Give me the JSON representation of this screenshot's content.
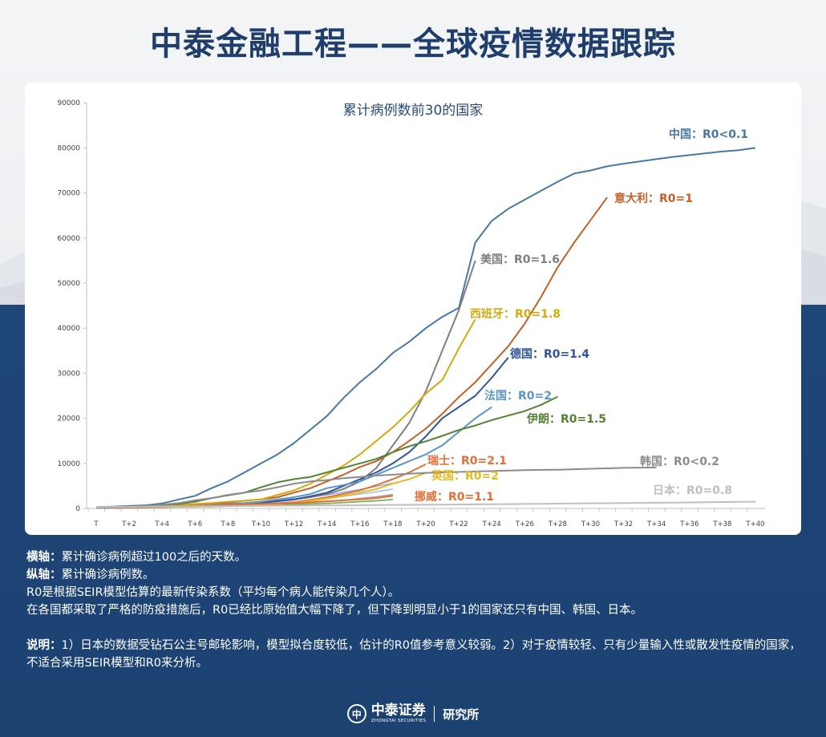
{
  "header": {
    "title": "中泰金融工程——全球疫情数据跟踪"
  },
  "colors": {
    "navy": "#1e4677",
    "title": "#1f3e6b"
  },
  "chart_data": {
    "type": "line",
    "title": "累计病例数前30的国家",
    "xlabel": "",
    "ylabel": "",
    "x_tick_labels": [
      "T",
      "T+2",
      "T+4",
      "T+6",
      "T+8",
      "T+10",
      "T+12",
      "T+14",
      "T+16",
      "T+18",
      "T+20",
      "T+22",
      "T+24",
      "T+26",
      "T+28",
      "T+30",
      "T+32",
      "T+34",
      "T+36",
      "T+38",
      "T+40"
    ],
    "x_range_days": [
      0,
      40
    ],
    "y_ticks": [
      0,
      10000,
      20000,
      30000,
      40000,
      50000,
      60000,
      70000,
      80000,
      90000
    ],
    "ylim": [
      0,
      90000
    ],
    "grid": false,
    "legend": "inline labels at line ends",
    "series": [
      {
        "name": "中国",
        "label": "中国：R0<0.1",
        "color": "#4a77a3",
        "values": [
          300,
          400,
          550,
          700,
          1100,
          2000,
          2800,
          4500,
          6000,
          8000,
          10000,
          12000,
          14500,
          17500,
          20500,
          24500,
          28000,
          31000,
          34500,
          37000,
          40000,
          42500,
          44500,
          59000,
          63800,
          66500,
          68500,
          70500,
          72500,
          74300,
          75000,
          75900,
          76500,
          77000,
          77500,
          78000,
          78400,
          78800,
          79200,
          79500,
          80000
        ]
      },
      {
        "name": "意大利",
        "label": "意大利：R0=1",
        "color": "#c0622a",
        "values": [
          150,
          200,
          300,
          400,
          500,
          700,
          900,
          1100,
          1300,
          1700,
          2000,
          2500,
          3500,
          4500,
          6000,
          7500,
          9200,
          10500,
          12500,
          15000,
          17700,
          21000,
          24700,
          28000,
          32000,
          36000,
          41000,
          47000,
          53500,
          59000,
          64000,
          69000
        ]
      },
      {
        "name": "美国",
        "label": "美国：R0=1.6",
        "color": "#7f7f7f",
        "values": [
          100,
          150,
          200,
          250,
          350,
          450,
          550,
          700,
          900,
          1100,
          1300,
          1600,
          2000,
          2500,
          3200,
          4300,
          6000,
          9000,
          14000,
          19000,
          26000,
          35000,
          44000,
          55000
        ]
      },
      {
        "name": "西班牙",
        "label": "西班牙：R0=1.8",
        "color": "#d4a90f",
        "values": [
          150,
          200,
          300,
          400,
          500,
          700,
          1000,
          1200,
          1500,
          1700,
          2000,
          3000,
          4000,
          5500,
          7500,
          9500,
          12000,
          15000,
          18000,
          21500,
          25500,
          28500,
          35500,
          42000
        ]
      },
      {
        "name": "德国",
        "label": "德国：R0=1.4",
        "color": "#2f5597",
        "values": [
          100,
          150,
          200,
          250,
          300,
          400,
          500,
          700,
          900,
          1100,
          1300,
          1600,
          2000,
          2700,
          3500,
          5000,
          6500,
          8000,
          10000,
          12500,
          16000,
          20000,
          22500,
          25000,
          29000,
          33500
        ]
      },
      {
        "name": "法国",
        "label": "法国：R0=2",
        "color": "#5b94c8",
        "values": [
          100,
          150,
          200,
          300,
          400,
          500,
          600,
          800,
          1000,
          1200,
          1500,
          2000,
          2500,
          3200,
          4500,
          5200,
          6000,
          7500,
          9000,
          10500,
          12000,
          14000,
          17000,
          20000,
          22500
        ]
      },
      {
        "name": "伊朗",
        "label": "伊朗：R0=1.5",
        "color": "#548235",
        "values": [
          100,
          200,
          300,
          500,
          800,
          1000,
          1500,
          2300,
          2900,
          3500,
          4700,
          5800,
          6500,
          7000,
          8000,
          9000,
          10000,
          11000,
          12500,
          13800,
          14900,
          16100,
          17400,
          18400,
          19600,
          20600,
          21600,
          23000,
          24800
        ]
      },
      {
        "name": "瑞士",
        "label": "瑞士：R0=2.1",
        "color": "#e0703a",
        "values": [
          100,
          150,
          200,
          300,
          350,
          400,
          500,
          600,
          700,
          800,
          900,
          1100,
          1400,
          1900,
          2500,
          3200,
          4000,
          5200,
          6500,
          8000,
          9800
        ]
      },
      {
        "name": "英国",
        "label": "英国：R0=2",
        "color": "#e8b820",
        "values": [
          100,
          150,
          200,
          250,
          300,
          350,
          400,
          500,
          600,
          700,
          800,
          1000,
          1300,
          1700,
          2200,
          2800,
          3500,
          4300,
          5500,
          6500,
          7900
        ]
      },
      {
        "name": "挪威",
        "label": "挪威：R0=1.1",
        "color": "#e0703a",
        "values": [
          100,
          150,
          200,
          300,
          400,
          500,
          600,
          700,
          800,
          900,
          1000,
          1100,
          1200,
          1400,
          1600,
          1800,
          2000,
          2300,
          2800
        ]
      },
      {
        "name": "韩国",
        "label": "韩国：R0<0.2",
        "color": "#8c8c8c",
        "values": [
          100,
          200,
          300,
          500,
          800,
          1200,
          1800,
          2300,
          3000,
          3500,
          4000,
          4700,
          5500,
          6000,
          6300,
          6700,
          7000,
          7300,
          7500,
          7700,
          7900,
          8000,
          8100,
          8200,
          8300,
          8400,
          8500,
          8550,
          8600,
          8700,
          8800,
          8900,
          9000,
          9050,
          9100
        ]
      },
      {
        "name": "日本",
        "label": "日本：R0=0.8",
        "color": "#bfbfbf",
        "values": [
          300,
          330,
          360,
          400,
          420,
          450,
          480,
          500,
          520,
          550,
          580,
          600,
          620,
          650,
          680,
          700,
          720,
          750,
          780,
          800,
          820,
          850,
          880,
          900,
          930,
          960,
          1000,
          1030,
          1060,
          1100,
          1130,
          1160,
          1200,
          1230,
          1260,
          1300,
          1340,
          1380,
          1420,
          1460,
          1500
        ]
      },
      {
        "color": "#8db4e2",
        "values": [
          100,
          150,
          200,
          250,
          300,
          400,
          500,
          700,
          900,
          1100,
          1400,
          1700,
          2100,
          2500,
          3000,
          3600,
          4200,
          4900,
          5600
        ]
      },
      {
        "color": "#9dc3e6",
        "values": [
          100,
          150,
          200,
          250,
          300,
          350,
          450,
          550,
          700,
          850,
          1000,
          1200,
          1500,
          1800,
          2200,
          2700,
          3200,
          3700,
          4300
        ]
      },
      {
        "color": "#a5a5a5",
        "values": [
          100,
          150,
          200,
          250,
          300,
          350,
          400,
          500,
          600,
          700,
          800,
          950,
          1100,
          1300,
          1500,
          1800,
          2200,
          2600,
          3100
        ]
      },
      {
        "color": "#70ad47",
        "values": [
          100,
          120,
          150,
          200,
          250,
          300,
          350,
          400,
          500,
          600,
          700,
          800,
          900,
          1000,
          1100,
          1300,
          1500,
          1700,
          2000
        ]
      }
    ]
  },
  "notes": {
    "xaxis_label": "横轴：",
    "xaxis_text": "累计确诊病例超过100之后的天数。",
    "yaxis_label": "纵轴：",
    "yaxis_text": "累计确诊病例数。",
    "r0_text": "R0是根据SEIR模型估算的最新传染系数（平均每个病人能传染几个人）。",
    "decline_text": "在各国都采取了严格的防疫措施后，R0已经比原始值大幅下降了，但下降到明显小于1的国家还只有中国、韩国、日本。",
    "remark_label": "说明：",
    "remark_text": "1）日本的数据受钻石公主号邮轮影响，模型拟合度较低，估计的R0值参考意义较弱。2）对于疫情较轻、只有少量输入性或散发性疫情的国家，不适合采用SEIR模型和R0来分析。"
  },
  "footer": {
    "brand_cn": "中泰证券",
    "brand_en": "ZHONGTAI SECURITIES",
    "institute": "研究所",
    "logo_glyph": "中"
  }
}
